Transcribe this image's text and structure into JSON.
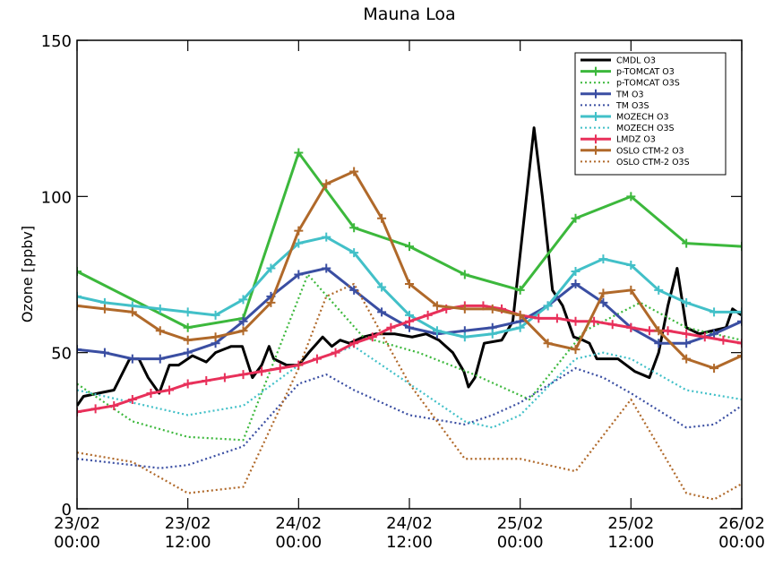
{
  "chart_data": {
    "type": "line",
    "title": "Mauna Loa",
    "ylabel": "Ozone [ppbv]",
    "xlim": [
      0,
      72
    ],
    "xticks": [
      {
        "value": 0,
        "label": [
          "23/02",
          "00:00"
        ]
      },
      {
        "value": 12,
        "label": [
          "23/02",
          "12:00"
        ]
      },
      {
        "value": 24,
        "label": [
          "24/02",
          "00:00"
        ]
      },
      {
        "value": 36,
        "label": [
          "24/02",
          "12:00"
        ]
      },
      {
        "value": 48,
        "label": [
          "25/02",
          "00:00"
        ]
      },
      {
        "value": 60,
        "label": [
          "25/02",
          "12:00"
        ]
      },
      {
        "value": 72,
        "label": [
          "26/02",
          "00:00"
        ]
      }
    ],
    "ylim": [
      0,
      150
    ],
    "yticks": [
      0,
      50,
      100,
      150
    ],
    "legend": "upper right",
    "series": [
      {
        "name": "CMDL O3",
        "color": "#000000",
        "linestyle": "solid",
        "marker": null,
        "x": [
          0,
          0.7,
          2.3,
          4,
          5.7,
          6.7,
          7.7,
          8.9,
          10,
          11,
          12.5,
          14,
          15,
          16.7,
          17.9,
          19,
          20,
          20.8,
          21.3,
          22.7,
          24,
          25.1,
          26.6,
          27.6,
          28.5,
          29.5,
          31,
          32.4,
          34.4,
          36.3,
          37.8,
          39.2,
          40.7,
          41.9,
          42.4,
          43.1,
          44.1,
          46,
          47.2,
          49.5,
          50.4,
          51.5,
          52.6,
          53.8,
          54.8,
          55.5,
          56.3,
          58.6,
          60.4,
          62,
          63,
          64,
          65,
          66,
          67.4,
          68.8,
          70.3,
          71,
          72
        ],
        "values": [
          33,
          36,
          37,
          38,
          48,
          48,
          42,
          37,
          46,
          46,
          49,
          47,
          50,
          52,
          52,
          42,
          46,
          52,
          48,
          46,
          46,
          50,
          55,
          52,
          54,
          53,
          55,
          56,
          56,
          55,
          56,
          54,
          50,
          44,
          39,
          42,
          53,
          54,
          60,
          122,
          100,
          70,
          65,
          55,
          54,
          53,
          48,
          48,
          44,
          42,
          50,
          65,
          77,
          58,
          56,
          57,
          58,
          64,
          62
        ]
      },
      {
        "name": "p-TOMCAT O3",
        "color": "#3cb83c",
        "linestyle": "solid",
        "marker": "+",
        "x": [
          0,
          12,
          18,
          24,
          30,
          36,
          42,
          48,
          54,
          60,
          66,
          72
        ],
        "values": [
          76,
          58,
          61,
          114,
          90,
          84,
          75,
          70,
          93,
          100,
          85,
          84
        ]
      },
      {
        "name": "p-TOMCAT O3S",
        "color": "#3cb83c",
        "linestyle": "dotted",
        "marker": null,
        "x": [
          0,
          6,
          12,
          18,
          25,
          31,
          37,
          43,
          49,
          55,
          61,
          66,
          72
        ],
        "values": [
          40,
          28,
          23,
          22,
          75,
          55,
          50,
          43,
          35,
          57,
          66,
          58,
          54
        ]
      },
      {
        "name": "TM O3",
        "color": "#3a4ea2",
        "linestyle": "solid",
        "marker": "+",
        "x": [
          0,
          3,
          6,
          9,
          12,
          15,
          18,
          21,
          24,
          27,
          30,
          33,
          36,
          39,
          42,
          45,
          48,
          51,
          54,
          57,
          60,
          63,
          66,
          69,
          72
        ],
        "values": [
          51,
          50,
          48,
          48,
          50,
          53,
          60,
          68,
          75,
          77,
          70,
          63,
          58,
          56,
          57,
          58,
          60,
          65,
          72,
          66,
          58,
          53,
          53,
          56,
          60
        ]
      },
      {
        "name": "TM O3S",
        "color": "#3a4ea2",
        "linestyle": "dotted",
        "marker": null,
        "x": [
          0,
          6,
          9,
          12,
          18,
          24,
          27,
          30,
          36,
          42,
          45,
          48,
          54,
          57,
          60,
          66,
          69,
          72
        ],
        "values": [
          16,
          14,
          13,
          14,
          20,
          40,
          43,
          38,
          30,
          27,
          30,
          34,
          45,
          42,
          37,
          26,
          27,
          33
        ]
      },
      {
        "name": "MOZECH O3",
        "color": "#42c0c8",
        "linestyle": "solid",
        "marker": "+",
        "x": [
          0,
          3,
          6,
          9,
          12,
          15,
          18,
          21,
          24,
          27,
          30,
          33,
          36,
          39,
          42,
          45,
          48,
          51,
          54,
          57,
          60,
          63,
          66,
          69,
          72
        ],
        "values": [
          68,
          66,
          65,
          64,
          63,
          62,
          67,
          77,
          85,
          87,
          82,
          71,
          62,
          57,
          55,
          56,
          58,
          65,
          76,
          80,
          78,
          70,
          66,
          63,
          63
        ]
      },
      {
        "name": "MOZECH O3S",
        "color": "#42c0c8",
        "linestyle": "dotted",
        "marker": null,
        "x": [
          0,
          6,
          12,
          18,
          24,
          30,
          36,
          42,
          45,
          48,
          54,
          57,
          60,
          66,
          72
        ],
        "values": [
          38,
          34,
          30,
          33,
          46,
          52,
          40,
          28,
          26,
          30,
          48,
          50,
          48,
          38,
          35
        ]
      },
      {
        "name": "LMDZ O3",
        "color": "#e8305a",
        "linestyle": "solid",
        "marker": "+",
        "x": [
          0,
          2,
          4,
          6,
          8,
          10,
          12,
          14,
          16,
          18,
          20,
          22,
          24,
          26,
          28,
          30,
          32,
          34,
          36,
          38,
          40,
          42,
          44,
          46,
          48,
          50,
          52,
          54,
          56,
          58,
          60,
          62,
          64,
          66,
          68,
          70,
          72
        ],
        "values": [
          31,
          32,
          33,
          35,
          37,
          38,
          40,
          41,
          42,
          43,
          44,
          45,
          46,
          48,
          50,
          53,
          55,
          58,
          60,
          62,
          64,
          65,
          65,
          64,
          62,
          61,
          61,
          60,
          60,
          59,
          58,
          57,
          57,
          56,
          55,
          54,
          53
        ]
      },
      {
        "name": "OSLO CTM-2 O3",
        "color": "#b0692a",
        "linestyle": "solid",
        "marker": "+",
        "x": [
          0,
          3,
          6,
          9,
          12,
          15,
          18,
          21,
          24,
          27,
          30,
          33,
          36,
          39,
          42,
          45,
          48,
          51,
          54,
          57,
          60,
          63,
          66,
          69,
          72
        ],
        "values": [
          65,
          64,
          63,
          57,
          54,
          55,
          57,
          66,
          89,
          104,
          108,
          93,
          72,
          65,
          64,
          64,
          62,
          53,
          51,
          69,
          70,
          57,
          48,
          45,
          49
        ]
      },
      {
        "name": "OSLO CTM-2 O3S",
        "color": "#b0692a",
        "linestyle": "dotted",
        "marker": null,
        "x": [
          0,
          6,
          12,
          18,
          24,
          27,
          30,
          36,
          42,
          48,
          54,
          60,
          66,
          69,
          72
        ],
        "values": [
          18,
          15,
          5,
          7,
          45,
          68,
          72,
          40,
          16,
          16,
          12,
          35,
          5,
          3,
          8
        ]
      }
    ]
  }
}
